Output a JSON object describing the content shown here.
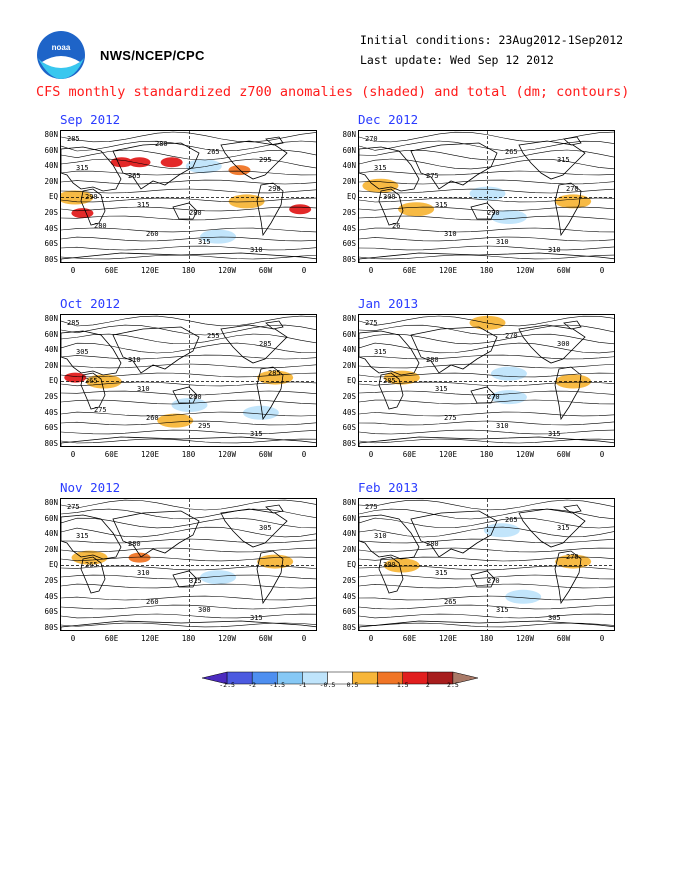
{
  "header": {
    "org": "NWS/NCEP/CPC",
    "initial_conditions": "Initial conditions: 23Aug2012-1Sep2012",
    "last_update": "Last update: Wed Sep 12 2012",
    "title": "CFS monthly standardized z700 anomalies (shaded) and total (dm; contours)"
  },
  "colors": {
    "title": "#ff1b1b",
    "panel_title": "#2b3cff"
  },
  "chart_data": {
    "type": "heatmap",
    "lat_labels": [
      "80N",
      "60N",
      "40N",
      "20N",
      "EQ",
      "20S",
      "40S",
      "60S",
      "80S"
    ],
    "lon_labels": [
      "0",
      "60E",
      "120E",
      "180",
      "120W",
      "60W",
      "0"
    ],
    "panels": [
      {
        "title": "Sep 2012",
        "contour_labels": [
          "285",
          "265",
          "280",
          "310",
          "315",
          "315",
          "315",
          "295",
          "290",
          "260",
          "265",
          "290",
          "280",
          "280"
        ],
        "anomalies": [
          {
            "lon": 85,
            "lat": 45,
            "value": 1.5
          },
          {
            "lon": 110,
            "lat": 45,
            "value": 1.5
          },
          {
            "lon": 155,
            "lat": 45,
            "value": 1.5
          },
          {
            "lon": 250,
            "lat": 35,
            "value": 1.0
          },
          {
            "lon": 335,
            "lat": -15,
            "value": 1.5
          },
          {
            "lon": 30,
            "lat": -20,
            "value": 1.5
          },
          {
            "lon": 20,
            "lat": 0,
            "value": 0.5
          },
          {
            "lon": 260,
            "lat": -5,
            "value": 0.5
          },
          {
            "lon": 200,
            "lat": 40,
            "value": -0.5
          },
          {
            "lon": 220,
            "lat": -50,
            "value": -0.5
          }
        ]
      },
      {
        "title": "Dec 2012",
        "contour_labels": [
          "270",
          "275",
          "290",
          "310",
          "315",
          "315",
          "310",
          "315",
          "300",
          "310",
          "265",
          "270",
          "26"
        ],
        "anomalies": [
          {
            "lon": 30,
            "lat": 15,
            "value": 0.5
          },
          {
            "lon": 80,
            "lat": -15,
            "value": 0.5
          },
          {
            "lon": 300,
            "lat": -5,
            "value": 0.5
          },
          {
            "lon": 210,
            "lat": -25,
            "value": -0.5
          },
          {
            "lon": 180,
            "lat": 5,
            "value": -0.5
          }
        ]
      },
      {
        "title": "Oct 2012",
        "contour_labels": [
          "285",
          "310",
          "280",
          "315",
          "305",
          "310",
          "295",
          "285",
          "265",
          "260",
          "255",
          "285",
          "275"
        ],
        "anomalies": [
          {
            "lon": 20,
            "lat": 5,
            "value": 1.5
          },
          {
            "lon": 60,
            "lat": 0,
            "value": 0.5
          },
          {
            "lon": 300,
            "lat": 5,
            "value": 0.5
          },
          {
            "lon": 280,
            "lat": -40,
            "value": -0.5
          },
          {
            "lon": 180,
            "lat": -30,
            "value": -0.5
          },
          {
            "lon": 160,
            "lat": -50,
            "value": 0.5
          }
        ]
      },
      {
        "title": "Jan 2013",
        "contour_labels": [
          "275",
          "280",
          "270",
          "315",
          "315",
          "315",
          "310",
          "300",
          "285",
          "275",
          "270"
        ],
        "anomalies": [
          {
            "lon": 180,
            "lat": 75,
            "value": 0.5
          },
          {
            "lon": 60,
            "lat": 5,
            "value": 0.5
          },
          {
            "lon": 300,
            "lat": 0,
            "value": 0.5
          },
          {
            "lon": 210,
            "lat": 10,
            "value": -0.5
          },
          {
            "lon": 210,
            "lat": -20,
            "value": -0.5
          }
        ]
      },
      {
        "title": "Nov 2012",
        "contour_labels": [
          "275",
          "280",
          "315",
          "315",
          "315",
          "310",
          "300",
          "305",
          "265",
          "260"
        ],
        "anomalies": [
          {
            "lon": 40,
            "lat": 10,
            "value": 0.5
          },
          {
            "lon": 110,
            "lat": 10,
            "value": 1.0
          },
          {
            "lon": 300,
            "lat": 5,
            "value": 0.5
          },
          {
            "lon": 220,
            "lat": -15,
            "value": -0.5
          }
        ]
      },
      {
        "title": "Feb 2013",
        "contour_labels": [
          "275",
          "280",
          "270",
          "305",
          "310",
          "315",
          "315",
          "315",
          "300",
          "265",
          "265",
          "270"
        ],
        "anomalies": [
          {
            "lon": 60,
            "lat": 0,
            "value": 0.5
          },
          {
            "lon": 300,
            "lat": 5,
            "value": 0.5
          },
          {
            "lon": 200,
            "lat": 45,
            "value": -0.5
          },
          {
            "lon": 230,
            "lat": -40,
            "value": -0.5
          }
        ]
      }
    ],
    "colorbar": {
      "labels": [
        "-2.5",
        "-2",
        "-1.5",
        "-1",
        "-0.5",
        "0.5",
        "1",
        "1.5",
        "2",
        "2.5"
      ],
      "colors": [
        "#4c2bbf",
        "#4c5ae0",
        "#4e8ff0",
        "#86c8f5",
        "#bfe4fb",
        "#ffffff",
        "#f7b63a",
        "#f07526",
        "#e11e1e",
        "#a71d1d",
        "#a97a68"
      ]
    }
  }
}
